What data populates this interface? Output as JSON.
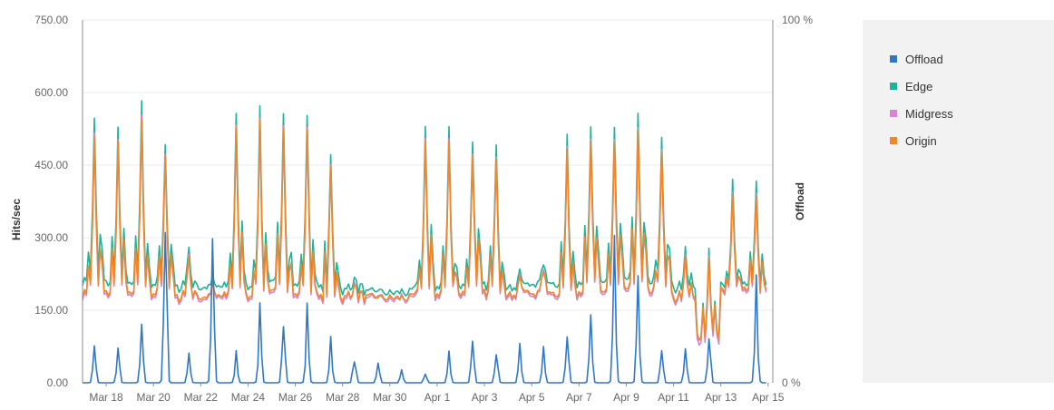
{
  "chart_data": {
    "type": "line",
    "title": "",
    "ylabel": "Hits/sec",
    "y2label": "Offload",
    "ylim": [
      0,
      750
    ],
    "y2lim": [
      0,
      100
    ],
    "yticks": [
      "0.00",
      "150.00",
      "300.00",
      "450.00",
      "600.00",
      "750.00"
    ],
    "y2ticks": [
      "0 %",
      "100 %"
    ],
    "x_start": "Mar 17",
    "x_end": "Apr 15",
    "xticks": [
      "Mar 18",
      "Mar 20",
      "Mar 22",
      "Mar 24",
      "Mar 26",
      "Mar 28",
      "Mar 30",
      "Apr 1",
      "Apr 3",
      "Apr 5",
      "Apr 7",
      "Apr 9",
      "Apr 11",
      "Apr 13",
      "Apr 15"
    ],
    "legend_position": "right",
    "series": [
      {
        "name": "Offload",
        "color": "#2f78c8",
        "axis": "right",
        "daily_peak_percent": [
          10,
          10,
          19,
          52,
          9,
          38,
          8,
          19,
          19,
          19,
          13,
          8,
          6,
          3,
          3,
          9,
          11,
          11,
          10,
          10,
          18,
          19,
          34,
          27,
          9,
          9,
          15,
          0,
          30
        ]
      },
      {
        "name": "Edge",
        "color": "#1bb39a",
        "axis": "left",
        "daily_peak": [
          550,
          525,
          585,
          500,
          280,
          215,
          560,
          570,
          565,
          555,
          470,
          225,
          195,
          190,
          530,
          525,
          505,
          500,
          240,
          250,
          505,
          530,
          525,
          560,
          505,
          280,
          280,
          415,
          415
        ],
        "daily_trough": [
          210,
          205,
          200,
          205,
          195,
          195,
          200,
          200,
          205,
          200,
          195,
          190,
          185,
          185,
          195,
          200,
          200,
          200,
          195,
          205,
          205,
          210,
          210,
          215,
          210,
          190,
          95,
          200,
          200
        ]
      },
      {
        "name": "Midgress",
        "color": "#d883d4",
        "axis": "left",
        "daily_peak": [
          520,
          500,
          555,
          480,
          265,
          205,
          535,
          545,
          540,
          530,
          450,
          215,
          185,
          180,
          505,
          500,
          480,
          475,
          230,
          240,
          480,
          505,
          500,
          530,
          480,
          265,
          265,
          390,
          390
        ],
        "daily_trough": [
          180,
          180,
          175,
          180,
          170,
          170,
          175,
          175,
          180,
          175,
          170,
          170,
          170,
          170,
          175,
          180,
          180,
          180,
          175,
          180,
          180,
          185,
          185,
          190,
          185,
          165,
          85,
          185,
          185
        ]
      },
      {
        "name": "Origin",
        "color": "#f08728",
        "axis": "left",
        "daily_peak": [
          510,
          495,
          545,
          475,
          260,
          200,
          530,
          540,
          535,
          525,
          445,
          210,
          180,
          175,
          500,
          495,
          475,
          470,
          225,
          235,
          475,
          500,
          495,
          525,
          475,
          260,
          260,
          385,
          385
        ],
        "daily_trough": [
          185,
          185,
          180,
          185,
          175,
          175,
          180,
          180,
          185,
          180,
          175,
          175,
          175,
          175,
          180,
          185,
          185,
          185,
          180,
          185,
          185,
          190,
          190,
          195,
          190,
          170,
          95,
          190,
          190
        ]
      }
    ]
  }
}
